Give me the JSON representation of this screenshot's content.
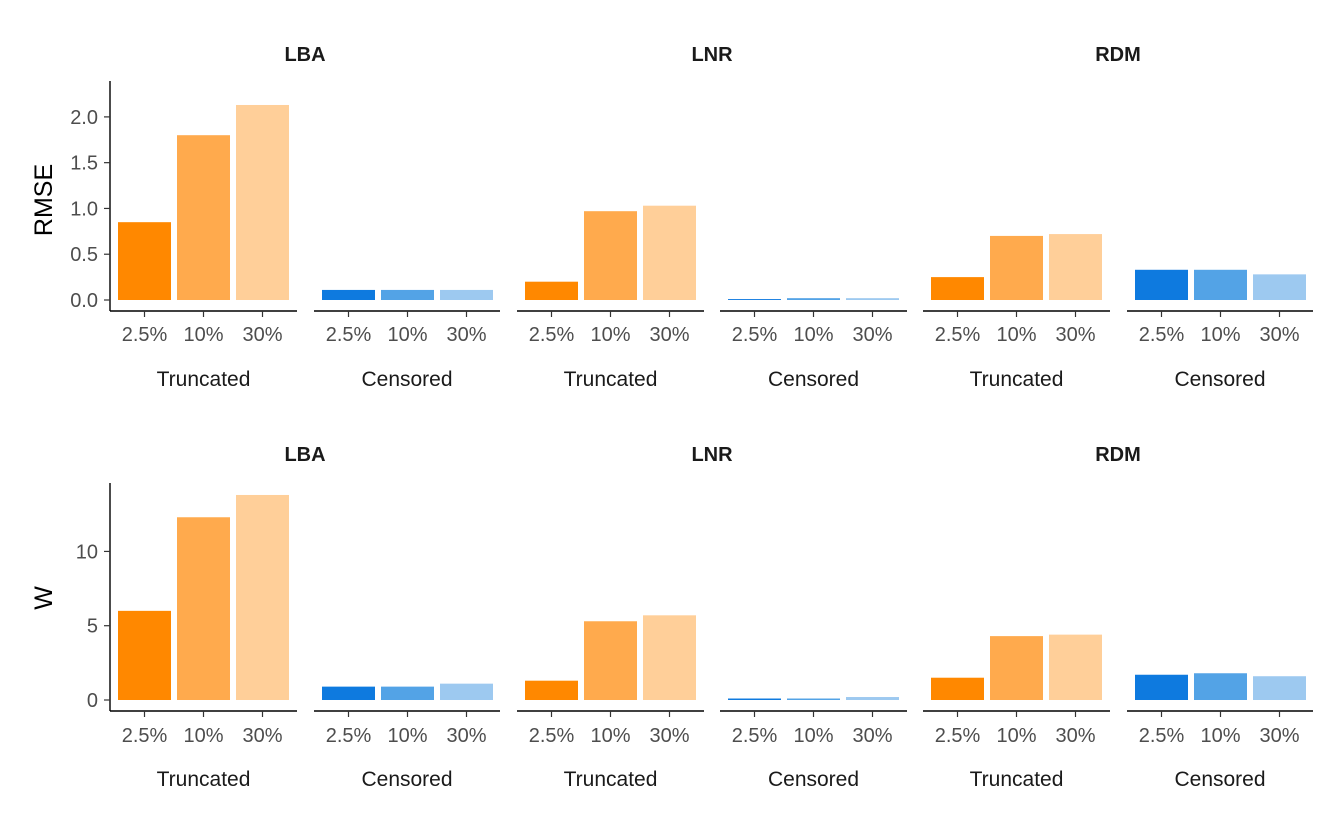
{
  "chart_data": [
    {
      "type": "bar",
      "ylabel": "RMSE",
      "ylim": [
        0,
        2.25
      ],
      "yticks": [
        0.0,
        0.5,
        1.0,
        1.5,
        2.0
      ],
      "ytick_labels": [
        "0.0",
        "0.5",
        "1.0",
        "1.5",
        "2.0"
      ],
      "facets": [
        "LBA",
        "LNR",
        "RDM"
      ],
      "groups": [
        "Truncated",
        "Censored"
      ],
      "categories": [
        "2.5%",
        "10%",
        "30%"
      ],
      "values": {
        "LBA": {
          "Truncated": [
            0.85,
            1.8,
            2.13
          ],
          "Censored": [
            0.11,
            0.11,
            0.11
          ]
        },
        "LNR": {
          "Truncated": [
            0.2,
            0.97,
            1.03
          ],
          "Censored": [
            0.01,
            0.02,
            0.02
          ]
        },
        "RDM": {
          "Truncated": [
            0.25,
            0.7,
            0.72
          ],
          "Censored": [
            0.33,
            0.33,
            0.28
          ]
        }
      }
    },
    {
      "type": "bar",
      "ylabel": "W",
      "ylim": [
        0,
        14
      ],
      "yticks": [
        0,
        5,
        10
      ],
      "ytick_labels": [
        "0",
        "5",
        "10"
      ],
      "facets": [
        "LBA",
        "LNR",
        "RDM"
      ],
      "groups": [
        "Truncated",
        "Censored"
      ],
      "categories": [
        "2.5%",
        "10%",
        "30%"
      ],
      "values": {
        "LBA": {
          "Truncated": [
            6.0,
            12.3,
            13.8
          ],
          "Censored": [
            0.9,
            0.9,
            1.1
          ]
        },
        "LNR": {
          "Truncated": [
            1.3,
            5.3,
            5.7
          ],
          "Censored": [
            0.1,
            0.1,
            0.2
          ]
        },
        "RDM": {
          "Truncated": [
            1.5,
            4.3,
            4.4
          ],
          "Censored": [
            1.7,
            1.8,
            1.6
          ]
        }
      }
    }
  ],
  "colors": {
    "Truncated": [
      "#FF8800",
      "#FFAA4D",
      "#FFCF99"
    ],
    "Censored": [
      "#0E7ADF",
      "#53A3E6",
      "#9DC9F0"
    ]
  }
}
